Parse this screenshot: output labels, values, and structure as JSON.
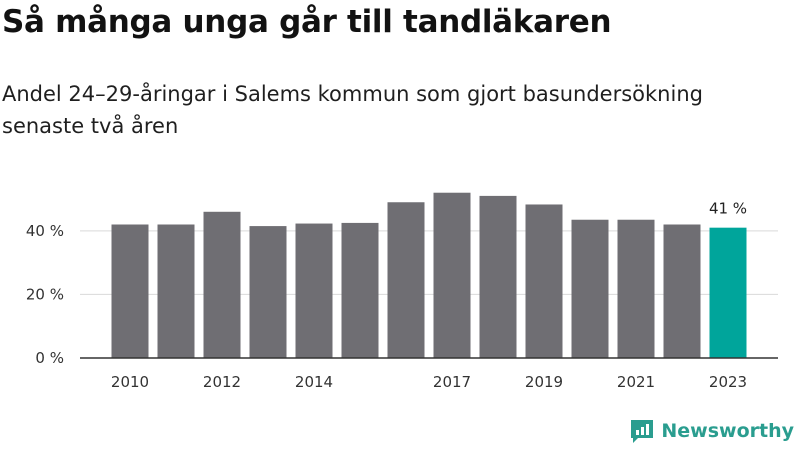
{
  "chart_data": {
    "type": "bar",
    "title": "Så många unga går till tandläkaren",
    "subtitle": "Andel 24–29-åringar i Salems kommun som gjort basundersökning senaste två åren",
    "categories": [
      "2010",
      "2011",
      "2012",
      "2013",
      "2014",
      "2015",
      "2016",
      "2017",
      "2018",
      "2019",
      "2020",
      "2021",
      "2022",
      "2023"
    ],
    "x_tick_labels": [
      "2010",
      "",
      "2012",
      "",
      "2014",
      "",
      "",
      "2017",
      "",
      "2019",
      "",
      "2021",
      "",
      "2023"
    ],
    "values": [
      42,
      42,
      46,
      41.5,
      42.3,
      42.5,
      49,
      52,
      51,
      48.3,
      43.5,
      43.5,
      42,
      41
    ],
    "highlight_index": 13,
    "highlight_label": "41 %",
    "ylim": [
      0,
      56
    ],
    "yticks": [
      0,
      20,
      40
    ],
    "ytick_labels": [
      "0 %",
      "20 %",
      "40 %"
    ],
    "colors": {
      "bar": "#6f6e73",
      "highlight": "#00a59b",
      "grid": "#d9d9d9",
      "axis": "#333333"
    },
    "grid": true
  },
  "brand": {
    "name": "Newsworthy",
    "icon": "newsworthy-logo-icon",
    "color": "#2a9d8f"
  }
}
